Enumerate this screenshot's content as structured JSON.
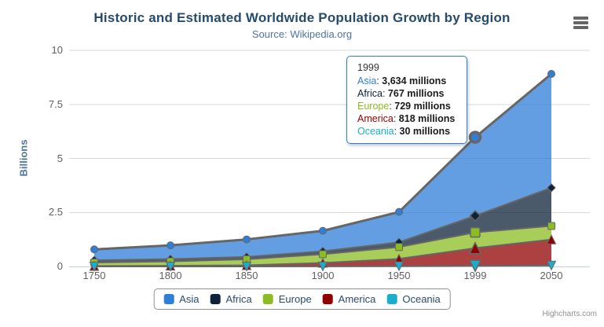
{
  "header": {
    "title": "Historic and Estimated Worldwide Population Growth by Region",
    "subtitle": "Source: Wikipedia.org"
  },
  "chart_data": {
    "type": "area",
    "stacking": "normal",
    "unit": "millions",
    "title": "Historic and Estimated Worldwide Population Growth by Region",
    "subtitle": "Source: Wikipedia.org",
    "categories": [
      "1750",
      "1800",
      "1850",
      "1900",
      "1950",
      "1999",
      "2050"
    ],
    "series": [
      {
        "name": "Asia",
        "color": "#2f7ed8",
        "marker": "circle",
        "values": [
          502,
          635,
          809,
          947,
          1402,
          3634,
          5268
        ]
      },
      {
        "name": "Africa",
        "color": "#0d233a",
        "marker": "diamond",
        "values": [
          106,
          107,
          111,
          133,
          221,
          767,
          1766
        ]
      },
      {
        "name": "Europe",
        "color": "#8bbc21",
        "marker": "square",
        "values": [
          163,
          203,
          276,
          408,
          547,
          729,
          628
        ]
      },
      {
        "name": "America",
        "color": "#910000",
        "marker": "triangle",
        "values": [
          18,
          31,
          54,
          156,
          339,
          818,
          1201
        ]
      },
      {
        "name": "Oceania",
        "color": "#1aadce",
        "marker": "triangle-down",
        "values": [
          2,
          2,
          2,
          6,
          13,
          30,
          46
        ]
      }
    ],
    "stack_order_bottom_to_top": [
      "Oceania",
      "America",
      "Europe",
      "Africa",
      "Asia"
    ],
    "stack_totals": [
      791,
      978,
      1252,
      1650,
      2522,
      5978,
      8909
    ],
    "xlabel": "",
    "ylabel": "Billions",
    "ylim": [
      0,
      10
    ],
    "yticks": [
      "0",
      "2.5",
      "5",
      "7.5",
      "10"
    ],
    "grid": true,
    "legend_position": "bottom",
    "hover_category": "1999",
    "hover_series": "Asia",
    "fill_opacity": 0.75
  },
  "tooltip": {
    "title": "1999",
    "border_color": "#2f7ed8",
    "rows": [
      {
        "name": "Asia",
        "color": "#2f7ed8",
        "value": "3,634 millions"
      },
      {
        "name": "Africa",
        "color": "#0d233a",
        "value": "767 millions"
      },
      {
        "name": "Europe",
        "color": "#8bbc21",
        "value": "729 millions"
      },
      {
        "name": "America",
        "color": "#910000",
        "value": "818 millions"
      },
      {
        "name": "Oceania",
        "color": "#1aadce",
        "value": "30 millions"
      }
    ]
  },
  "context_menu": {
    "icon": "hamburger-menu-icon"
  },
  "credit": {
    "label": "Highcharts.com"
  },
  "colors": {
    "title_text": "#274b6d",
    "subtitle_text": "#4d759e",
    "axis_label_text": "#606060",
    "axis_title_text": "#4d759e",
    "legend_text": "#274b6d",
    "series_line": "#666666",
    "gridline": "#d8d8d8",
    "axis_line": "#c0d0e0",
    "legend_border": "#909090",
    "credit_text": "#909090",
    "menu_icon": "#666666"
  }
}
